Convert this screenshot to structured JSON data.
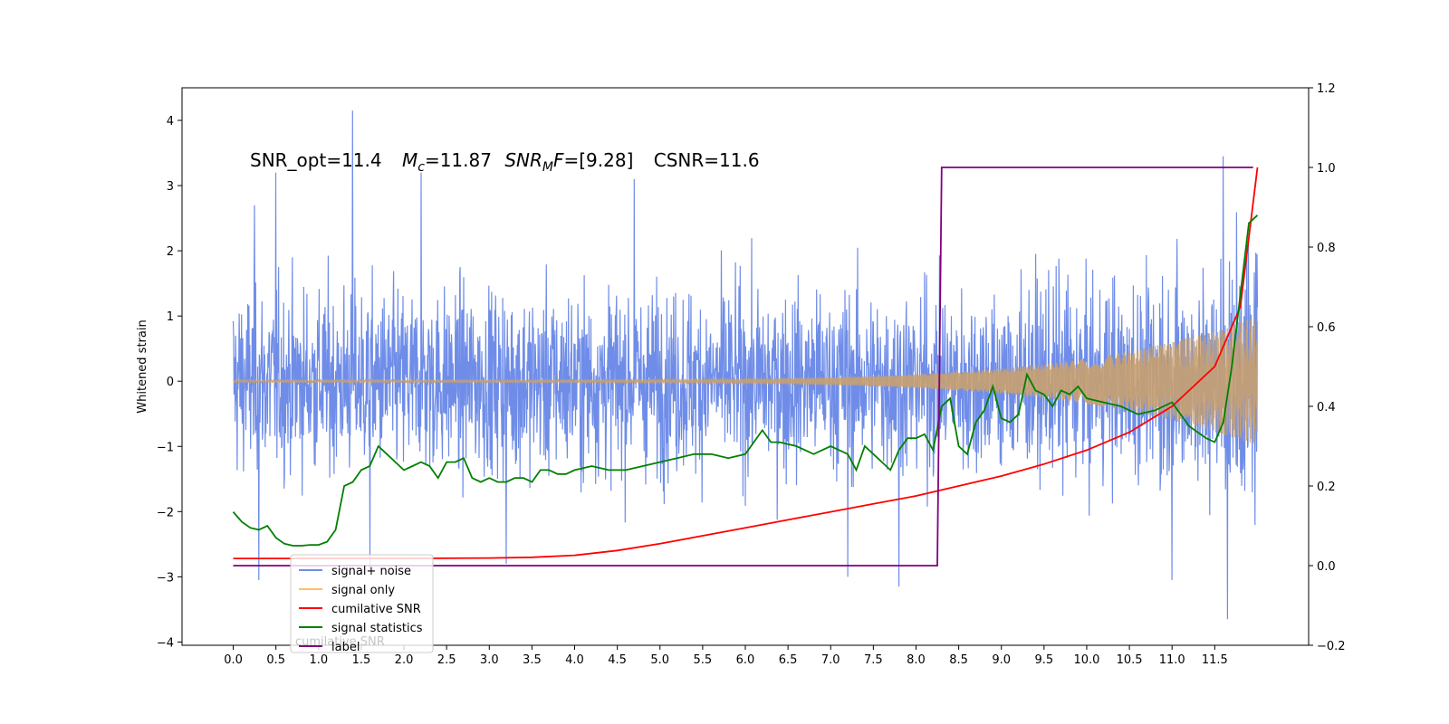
{
  "chart_data": {
    "type": "line",
    "annotation": {
      "snr_opt": "SNR_opt=11.4",
      "mc_sym": "M",
      "mc_sub": "c",
      "mc_val": "=11.87",
      "mf_sym": "SNR",
      "mf_sub": "M",
      "mf_sym2": "F",
      "mf_val": "=[9.28]",
      "csnr": "CSNR=11.6"
    },
    "ylabel": "Whitened strain",
    "xlim": [
      -0.6,
      12.6
    ],
    "ylim_left": [
      -4.05,
      4.5
    ],
    "ylim_right": [
      -0.2,
      1.2
    ],
    "x_ticks": [
      "0.0",
      "0.5",
      "1.0",
      "1.5",
      "2.0",
      "2.5",
      "3.0",
      "3.5",
      "4.0",
      "4.5",
      "5.0",
      "5.5",
      "6.0",
      "6.5",
      "7.0",
      "7.5",
      "8.0",
      "8.5",
      "9.0",
      "9.5",
      "10.0",
      "10.5",
      "11.0",
      "11.5"
    ],
    "y_ticks_left": [
      "−4",
      "−3",
      "−2",
      "−1",
      "0",
      "1",
      "2",
      "3",
      "4"
    ],
    "y_ticks_right": [
      "−0.2",
      "0.0",
      "0.2",
      "0.4",
      "0.6",
      "0.8",
      "1.0",
      "1.2"
    ],
    "grid": false,
    "legend_position": "bottom-left",
    "legend": {
      "items": [
        {
          "label": "signal+ noise",
          "color": "#6f8de8"
        },
        {
          "label": "signal only",
          "color": "#ffc060"
        },
        {
          "label": "cumilative SNR",
          "color": "#ff0000"
        },
        {
          "label": "signal statistics",
          "color": "#008000"
        },
        {
          "label": "label",
          "color": "#800080"
        }
      ],
      "overlap_text": "cumilative SNR"
    },
    "series": [
      {
        "name": "signal+ noise",
        "axis": "left",
        "color": "#6f8de8",
        "x_range": [
          0.0,
          12.0
        ],
        "noise_std": 0.85,
        "peaks": [
          [
            0.25,
            2.7
          ],
          [
            0.3,
            -3.05
          ],
          [
            0.5,
            3.2
          ],
          [
            1.4,
            4.15
          ],
          [
            1.6,
            -2.9
          ],
          [
            2.2,
            3.2
          ],
          [
            3.2,
            -2.8
          ],
          [
            4.7,
            3.1
          ],
          [
            7.2,
            -3.0
          ],
          [
            7.8,
            -3.15
          ],
          [
            11.0,
            -3.05
          ],
          [
            11.6,
            3.45
          ],
          [
            11.65,
            -3.65
          ]
        ]
      },
      {
        "name": "signal only",
        "axis": "left",
        "color": "#ffc060",
        "x_range": [
          0.0,
          12.0
        ],
        "amplitude_start": 0.02,
        "amplitude_end": 1.0
      },
      {
        "name": "cumilative SNR",
        "axis": "right",
        "color": "#ff0000",
        "x": [
          0.0,
          1.0,
          2.0,
          3.0,
          3.5,
          4.0,
          4.5,
          5.0,
          5.5,
          6.0,
          6.5,
          7.0,
          7.5,
          8.0,
          8.5,
          9.0,
          9.5,
          10.0,
          10.5,
          11.0,
          11.5,
          11.8,
          12.0
        ],
        "y": [
          0.018,
          0.018,
          0.018,
          0.019,
          0.021,
          0.026,
          0.038,
          0.055,
          0.075,
          0.095,
          0.115,
          0.135,
          0.155,
          0.175,
          0.2,
          0.225,
          0.255,
          0.29,
          0.335,
          0.4,
          0.5,
          0.65,
          1.0
        ]
      },
      {
        "name": "signal statistics",
        "axis": "right",
        "color": "#008000",
        "x": [
          0.0,
          0.1,
          0.2,
          0.3,
          0.4,
          0.5,
          0.6,
          0.7,
          0.8,
          0.9,
          1.0,
          1.1,
          1.2,
          1.3,
          1.4,
          1.5,
          1.6,
          1.7,
          1.8,
          1.9,
          2.0,
          2.1,
          2.2,
          2.3,
          2.4,
          2.5,
          2.6,
          2.7,
          2.8,
          2.9,
          3.0,
          3.1,
          3.2,
          3.3,
          3.4,
          3.5,
          3.6,
          3.7,
          3.8,
          3.9,
          4.0,
          4.2,
          4.4,
          4.6,
          4.8,
          5.0,
          5.2,
          5.4,
          5.6,
          5.8,
          6.0,
          6.2,
          6.3,
          6.4,
          6.6,
          6.8,
          7.0,
          7.1,
          7.2,
          7.3,
          7.4,
          7.5,
          7.6,
          7.7,
          7.8,
          7.9,
          8.0,
          8.1,
          8.2,
          8.3,
          8.4,
          8.5,
          8.6,
          8.7,
          8.8,
          8.9,
          9.0,
          9.1,
          9.2,
          9.3,
          9.4,
          9.5,
          9.6,
          9.7,
          9.8,
          9.9,
          10.0,
          10.2,
          10.4,
          10.6,
          10.8,
          11.0,
          11.2,
          11.4,
          11.5,
          11.6,
          11.7,
          11.8,
          11.9,
          12.0
        ],
        "y": [
          0.135,
          0.11,
          0.095,
          0.09,
          0.1,
          0.07,
          0.055,
          0.05,
          0.05,
          0.052,
          0.052,
          0.06,
          0.09,
          0.2,
          0.21,
          0.24,
          0.25,
          0.3,
          0.28,
          0.26,
          0.24,
          0.25,
          0.26,
          0.25,
          0.22,
          0.26,
          0.26,
          0.27,
          0.22,
          0.21,
          0.22,
          0.21,
          0.21,
          0.22,
          0.22,
          0.21,
          0.24,
          0.24,
          0.23,
          0.23,
          0.24,
          0.25,
          0.24,
          0.24,
          0.25,
          0.26,
          0.27,
          0.28,
          0.28,
          0.27,
          0.28,
          0.34,
          0.31,
          0.31,
          0.3,
          0.28,
          0.3,
          0.29,
          0.28,
          0.24,
          0.3,
          0.28,
          0.26,
          0.24,
          0.29,
          0.32,
          0.32,
          0.33,
          0.29,
          0.4,
          0.42,
          0.3,
          0.28,
          0.36,
          0.39,
          0.45,
          0.37,
          0.36,
          0.38,
          0.48,
          0.44,
          0.43,
          0.4,
          0.44,
          0.43,
          0.45,
          0.42,
          0.41,
          0.4,
          0.38,
          0.39,
          0.41,
          0.35,
          0.32,
          0.31,
          0.36,
          0.5,
          0.68,
          0.86,
          0.88
        ]
      },
      {
        "name": "label",
        "axis": "right",
        "color": "#800080",
        "x": [
          0.0,
          8.25,
          8.3,
          11.95
        ],
        "y": [
          0.0,
          0.0,
          1.0,
          1.0
        ]
      }
    ]
  }
}
